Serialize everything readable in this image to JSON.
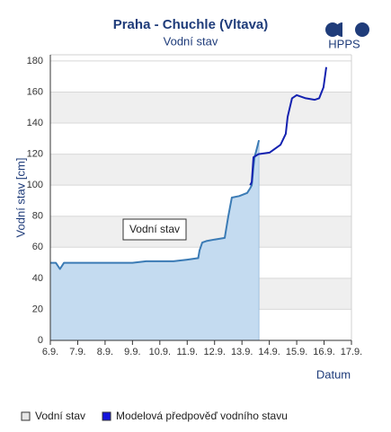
{
  "logo": "HPPS",
  "chart_data": {
    "type": "line",
    "title": "Praha - Chuchle (Vltava)",
    "subtitle": "Vodní stav",
    "y_label": "Vodní stav [cm]",
    "x_label": "Datum",
    "annotation": "Vodní stav",
    "xlim": [
      6,
      17
    ],
    "xticks": [
      {
        "value": 6,
        "label": "6.9."
      },
      {
        "value": 7,
        "label": "7.9."
      },
      {
        "value": 8,
        "label": "8.9."
      },
      {
        "value": 9,
        "label": "9.9."
      },
      {
        "value": 10,
        "label": "10.9."
      },
      {
        "value": 11,
        "label": "11.9."
      },
      {
        "value": 12,
        "label": "12.9."
      },
      {
        "value": 13,
        "label": "13.9."
      },
      {
        "value": 14,
        "label": "14.9."
      },
      {
        "value": 15,
        "label": "15.9."
      },
      {
        "value": 16,
        "label": "16.9."
      },
      {
        "value": 17,
        "label": "17.9."
      }
    ],
    "ylim": [
      0,
      184
    ],
    "yticks": [
      0,
      20,
      40,
      60,
      80,
      100,
      120,
      140,
      160,
      180
    ],
    "grid": true,
    "bands": "#efefef",
    "series": [
      {
        "name": "Vodní stav",
        "color": "#3b7bb5",
        "fill": "#c4dbf0",
        "legend_color": "#e6e6e6",
        "x": [
          6.0,
          6.2,
          6.35,
          6.5,
          7.0,
          7.5,
          8.0,
          8.5,
          9.0,
          9.5,
          10.0,
          10.5,
          11.0,
          11.4,
          11.45,
          11.55,
          11.7,
          12.0,
          12.37,
          12.5,
          12.63,
          12.9,
          13.19,
          13.3,
          13.36,
          13.42,
          13.46,
          13.55,
          13.62
        ],
        "values": [
          50,
          50,
          46,
          50,
          50,
          50,
          50,
          50,
          50,
          51,
          51,
          51,
          52,
          53,
          58,
          63,
          64,
          65,
          66,
          80,
          92,
          93,
          95,
          98,
          100,
          112,
          118,
          124,
          129
        ]
      },
      {
        "name": "Modelová předpověď vodního stavu",
        "color": "#1422b0",
        "legend_color": "#1414dc",
        "x": [
          13.3,
          13.36,
          13.42,
          13.6,
          14.01,
          14.41,
          14.6,
          14.67,
          14.83,
          15.0,
          15.33,
          15.66,
          15.82,
          15.98,
          16.08
        ],
        "values": [
          100,
          102,
          118,
          120,
          121,
          126,
          133,
          144,
          156,
          158,
          156,
          155,
          156,
          163,
          176
        ]
      }
    ]
  }
}
